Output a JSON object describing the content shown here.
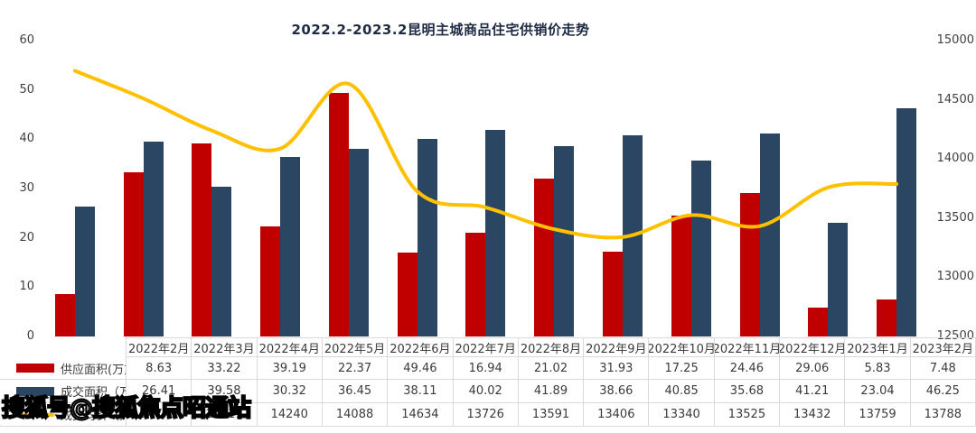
{
  "title": "2022.2-2023.2昆明主城商品住宅供销价走势",
  "watermark": "搜狐号@搜狐焦点昭通站",
  "colors": {
    "supply_bar": "#c00000",
    "deal_bar": "#2b4663",
    "price_line": "#ffc000",
    "table_border": "#d9d9d9",
    "axis_text": "#404040"
  },
  "chart_data": {
    "type": "bar",
    "subtype": "grouped bars + smooth line on secondary axis",
    "title": "2022.2-2023.2昆明主城商品住宅供销价走势",
    "categories": [
      "2022年2月",
      "2022年3月",
      "2022年4月",
      "2022年5月",
      "2022年6月",
      "2022年7月",
      "2022年8月",
      "2022年9月",
      "2022年10月",
      "2022年11月",
      "2022年12月",
      "2023年1月",
      "2023年2月"
    ],
    "series": [
      {
        "name": "供应面积(万方)",
        "kind": "bar",
        "axis": "left",
        "color": "#c00000",
        "values": [
          8.63,
          33.22,
          39.19,
          22.37,
          49.46,
          16.94,
          21.02,
          31.93,
          17.25,
          24.46,
          29.06,
          5.83,
          7.48
        ]
      },
      {
        "name": "成交面积（万方）",
        "kind": "bar",
        "axis": "left",
        "color": "#2b4663",
        "values": [
          26.41,
          39.58,
          30.32,
          36.45,
          38.11,
          40.02,
          41.89,
          38.66,
          40.85,
          35.68,
          41.21,
          23.04,
          46.25
        ]
      },
      {
        "name": "成交均价（元/㎡）",
        "kind": "line",
        "axis": "right",
        "color": "#ffc000",
        "values": [
          14745,
          14511,
          14240,
          14088,
          14634,
          13726,
          13591,
          13406,
          13340,
          13525,
          13432,
          13759,
          13788
        ]
      }
    ],
    "left_axis": {
      "min": 0,
      "max": 60,
      "ticks": [
        60,
        50,
        40,
        30,
        20,
        10,
        0
      ]
    },
    "right_axis": {
      "min": 12500,
      "max": 15000,
      "ticks": [
        15000,
        14500,
        14000,
        13500,
        13000,
        12500
      ]
    },
    "grid": false,
    "legend_position": "table row labels (data table below chart)"
  }
}
